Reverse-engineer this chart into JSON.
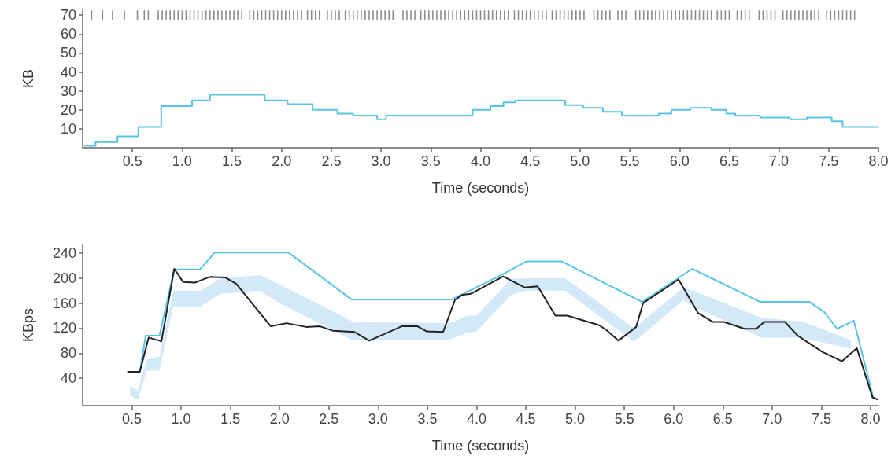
{
  "chart_data": [
    {
      "type": "step",
      "ylabel": "KB",
      "xlabel": "Time (seconds)",
      "xlim": [
        0,
        8
      ],
      "xticks": [
        0.5,
        {
          "value": 1,
          "label": "1.0"
        },
        1.5,
        {
          "value": 2,
          "label": "2.0"
        },
        2.5,
        {
          "value": 3,
          "label": "3.0"
        },
        3.5,
        {
          "value": 4,
          "label": "4.0"
        },
        4.5,
        {
          "value": 5,
          "label": "5.0"
        },
        5.5,
        {
          "value": 6,
          "label": "6.0"
        },
        6.5,
        {
          "value": 7,
          "label": "7.0"
        },
        7.5,
        {
          "value": 8,
          "label": "8.0"
        }
      ],
      "ylim": [
        0,
        73
      ],
      "yticks": [
        10,
        20,
        30,
        40,
        50,
        60,
        70
      ],
      "series": [
        {
          "color": "#5bc4e6",
          "x": [
            0.02,
            0.13,
            0.35,
            0.56,
            0.79,
            1.1,
            1.28,
            1.83,
            2.06,
            2.31,
            2.56,
            2.72,
            2.96,
            3.05,
            3.92,
            4.1,
            4.23,
            4.35,
            4.85,
            5.03,
            5.23,
            5.42,
            5.79,
            5.92,
            6.11,
            6.32,
            6.47,
            6.56,
            6.81,
            7.11,
            7.28,
            7.53,
            7.64,
            8.0
          ],
          "values": [
            1,
            3,
            6,
            11,
            22,
            25,
            28,
            25,
            23,
            20,
            18,
            17,
            15,
            17,
            20,
            22,
            24,
            25,
            22.5,
            21,
            19,
            17,
            18,
            20,
            21,
            20,
            18,
            17,
            16,
            15,
            16,
            14,
            11,
            11
          ]
        },
        {
          "type": "bar",
          "color": "#8c8c8c",
          "base": [
            67.5,
            67.5,
            67.5,
            67.5,
            67.5,
            67.5,
            67.5,
            67.5,
            67.5,
            67.5,
            67.5,
            67.5,
            67.5,
            67.5,
            67.5,
            67.5,
            67.5,
            67.5,
            67.5,
            67.5,
            67.5,
            67.5,
            67.5,
            67.5,
            67.5,
            67.5,
            67.5,
            67.5,
            67.5,
            67.5,
            67.5,
            67.5,
            67.5,
            67.5,
            67.5,
            67.5,
            67.5,
            67.5,
            67.5,
            67.5,
            67.5,
            67.5,
            67.5,
            67.5,
            67.5,
            67.5,
            67.5,
            67.5,
            67.5,
            67.5,
            67.5,
            67.5,
            67.5,
            67.5,
            67.5,
            67.5,
            67.5,
            67.5,
            67.5,
            67.5,
            67.5,
            67.5,
            67.5,
            67.5,
            67.5,
            67.5,
            67.5,
            67.5,
            67.5,
            67.5,
            67.5,
            67.5,
            67.5,
            67.5,
            67.5,
            67.5,
            67.5,
            67.5,
            67.5,
            67.5,
            67.5,
            67.5,
            67.5,
            67.5,
            67.5,
            67.5,
            67.5,
            67.5,
            67.5,
            67.5,
            67.5,
            67.5,
            67.5,
            67.5,
            67.5,
            67.5,
            67.5,
            67.5,
            67.5,
            67.5,
            67.5,
            67.5,
            67.5,
            67.5,
            67.5,
            67.5,
            67.5,
            67.5,
            67.5,
            67.5,
            67.5,
            67.5,
            67.5,
            67.5,
            67.5,
            67.5,
            67.5,
            67.5,
            67.5,
            67.5,
            67.5,
            67.5,
            67.5,
            67.5,
            67.5,
            67.5,
            67.5,
            67.5,
            67.5,
            67.5,
            67.5,
            67.5,
            67.5,
            67.5,
            67.5,
            67.5,
            67.5,
            67.5,
            67.5,
            67.5,
            67.5,
            67.5,
            67.5,
            67.5,
            67.5,
            67.5,
            67.5,
            67.5,
            67.5,
            67.5,
            67.5,
            67.5,
            67.5,
            67.5,
            67.5,
            67.5,
            67.5,
            67.5,
            67.5,
            67.5,
            67.5,
            67.5,
            67.5,
            67.5,
            67.5,
            67.5,
            67.5,
            67.5
          ],
          "x": [
            0.09,
            0.2,
            0.3,
            0.42,
            0.55,
            0.62,
            0.66,
            0.76,
            0.8,
            0.84,
            0.88,
            0.92,
            0.96,
            1.0,
            1.04,
            1.08,
            1.12,
            1.16,
            1.2,
            1.24,
            1.28,
            1.32,
            1.36,
            1.4,
            1.44,
            1.48,
            1.52,
            1.56,
            1.6,
            1.68,
            1.72,
            1.76,
            1.8,
            1.84,
            1.88,
            1.92,
            1.96,
            2.0,
            2.04,
            2.08,
            2.12,
            2.16,
            2.2,
            2.26,
            2.3,
            2.34,
            2.38,
            2.46,
            2.5,
            2.54,
            2.58,
            2.64,
            2.68,
            2.72,
            2.76,
            2.8,
            2.84,
            2.88,
            2.92,
            2.96,
            3.0,
            3.04,
            3.08,
            3.12,
            3.22,
            3.26,
            3.3,
            3.34,
            3.4,
            3.44,
            3.48,
            3.52,
            3.56,
            3.6,
            3.64,
            3.68,
            3.72,
            3.76,
            3.8,
            3.84,
            3.88,
            3.92,
            3.96,
            4.0,
            4.04,
            4.08,
            4.12,
            4.16,
            4.2,
            4.24,
            4.28,
            4.34,
            4.38,
            4.42,
            4.46,
            4.5,
            4.54,
            4.58,
            4.62,
            4.66,
            4.72,
            4.76,
            4.8,
            4.84,
            4.88,
            4.92,
            4.96,
            5.0,
            5.04,
            5.14,
            5.18,
            5.22,
            5.26,
            5.3,
            5.38,
            5.42,
            5.46,
            5.56,
            5.6,
            5.64,
            5.68,
            5.72,
            5.76,
            5.8,
            5.84,
            5.88,
            5.92,
            5.96,
            6.0,
            6.04,
            6.08,
            6.12,
            6.16,
            6.2,
            6.24,
            6.28,
            6.32,
            6.38,
            6.42,
            6.46,
            6.5,
            6.58,
            6.62,
            6.66,
            6.7,
            6.8,
            6.84,
            6.88,
            6.92,
            6.96,
            7.04,
            7.08,
            7.12,
            7.16,
            7.2,
            7.24,
            7.28,
            7.32,
            7.36,
            7.4,
            7.48,
            7.52,
            7.56,
            7.6,
            7.64,
            7.68,
            7.72,
            7.76
          ],
          "values": [
            5,
            5,
            5,
            5,
            5,
            5,
            5,
            5,
            5,
            5,
            5,
            5,
            5,
            5,
            5,
            5,
            5,
            5,
            5,
            5,
            5,
            5,
            5,
            5,
            5,
            5,
            5,
            5,
            5,
            5,
            5,
            5,
            5,
            5,
            5,
            5,
            5,
            5,
            5,
            5,
            5,
            5,
            5,
            5,
            5,
            5,
            5,
            5,
            5,
            5,
            5,
            5,
            5,
            5,
            5,
            5,
            5,
            5,
            5,
            5,
            5,
            5,
            5,
            5,
            5,
            5,
            5,
            5,
            5,
            5,
            5,
            5,
            5,
            5,
            5,
            5,
            5,
            5,
            5,
            5,
            5,
            5,
            5,
            5,
            5,
            5,
            5,
            5,
            5,
            5,
            5,
            5,
            5,
            5,
            5,
            5,
            5,
            5,
            5,
            5,
            5,
            5,
            5,
            5,
            5,
            5,
            5,
            5,
            5,
            5,
            5,
            5,
            5,
            5,
            5,
            5,
            5,
            5,
            5,
            5,
            5,
            5,
            5,
            5,
            5,
            5,
            5,
            5,
            5,
            5,
            5,
            5,
            5,
            5,
            5,
            5,
            5,
            5,
            5,
            5,
            5,
            5,
            5,
            5,
            5,
            5,
            5,
            5,
            5,
            5,
            5,
            5,
            5,
            5,
            5,
            5,
            5,
            5,
            5,
            5,
            5,
            5,
            5,
            5,
            5,
            5,
            5,
            5
          ]
        }
      ]
    },
    {
      "type": "line",
      "ylabel": "KBps",
      "xlabel": "Time (seconds)",
      "xlim": [
        0,
        8.08
      ],
      "xticks": [
        0.5,
        {
          "value": 1,
          "label": "1.0"
        },
        1.5,
        {
          "value": 2,
          "label": "2.0"
        },
        2.5,
        {
          "value": 3,
          "label": "3.0"
        },
        3.5,
        {
          "value": 4,
          "label": "4.0"
        },
        4.5,
        {
          "value": 5,
          "label": "5.0"
        },
        5.5,
        {
          "value": 6,
          "label": "6.0"
        },
        6.5,
        {
          "value": 7,
          "label": "7.0"
        },
        7.5,
        {
          "value": 8,
          "label": "8.0"
        }
      ],
      "ylim": [
        -4,
        254
      ],
      "yticks": [
        40,
        80,
        120,
        160,
        200,
        240
      ],
      "series": [
        {
          "color": "#d3e9f8",
          "x": [
            0.48,
            0.56,
            0.65,
            0.78,
            0.92,
            1.2,
            1.4,
            1.8,
            2.0,
            2.75,
            3.67,
            3.75,
            3.9,
            4.0,
            4.35,
            4.5,
            4.9,
            5.6,
            6.1,
            6.2,
            6.9,
            7.3,
            7.8
          ],
          "values": [
            null,
            null,
            null,
            null,
            null,
            null,
            null,
            null,
            null,
            null,
            null,
            null,
            null,
            null,
            null,
            null,
            null,
            null,
            null,
            null,
            null,
            null,
            null
          ],
          "lower": [
            12,
            5,
            52,
            52,
            155,
            155,
            175,
            180,
            160,
            100,
            100,
            103,
            112,
            115,
            173,
            180,
            180,
            98,
            165,
            155,
            105,
            105,
            87
          ],
          "upper": [
            28,
            20,
            70,
            75,
            180,
            180,
            200,
            205,
            190,
            130,
            128,
            129,
            140,
            140,
            199,
            200,
            200,
            120,
            185,
            180,
            136,
            131,
            101
          ]
        },
        {
          "color": "#5bc4e6",
          "x": [
            0.46,
            0.58,
            0.64,
            0.78,
            0.93,
            1.19,
            1.34,
            2.09,
            2.73,
            3.67,
            3.75,
            4.26,
            4.51,
            4.86,
            5.68,
            6.19,
            6.88,
            7.38,
            7.53,
            7.66,
            7.83,
            8.03
          ],
          "values": [
            50,
            50,
            108,
            108,
            214,
            214,
            241,
            241,
            166,
            166,
            166,
            206,
            227,
            227,
            162,
            215,
            162,
            162,
            146,
            119,
            132,
            7
          ]
        },
        {
          "color": "#222222",
          "x": [
            0.46,
            0.58,
            0.67,
            0.8,
            0.93,
            1.02,
            1.14,
            1.29,
            1.45,
            1.56,
            1.91,
            2.07,
            2.27,
            2.41,
            2.54,
            2.76,
            2.91,
            3.24,
            3.4,
            3.49,
            3.66,
            3.78,
            3.85,
            3.94,
            4.27,
            4.49,
            4.62,
            4.8,
            4.92,
            5.24,
            5.31,
            5.44,
            5.62,
            5.69,
            6.05,
            6.25,
            6.4,
            6.51,
            6.72,
            6.84,
            6.92,
            7.13,
            7.26,
            7.51,
            7.71,
            7.86,
            8.02,
            8.07
          ],
          "values": [
            50,
            50,
            105,
            99,
            215,
            194,
            193,
            202,
            201,
            191,
            123,
            128,
            122,
            123,
            116,
            114,
            100,
            123,
            123,
            115,
            114,
            165,
            173,
            175,
            203,
            185,
            187,
            140,
            140,
            125,
            118,
            100,
            122,
            160,
            198,
            144,
            130,
            130,
            119,
            119,
            130,
            130,
            108,
            82,
            67,
            88,
            9,
            6
          ]
        }
      ]
    }
  ]
}
